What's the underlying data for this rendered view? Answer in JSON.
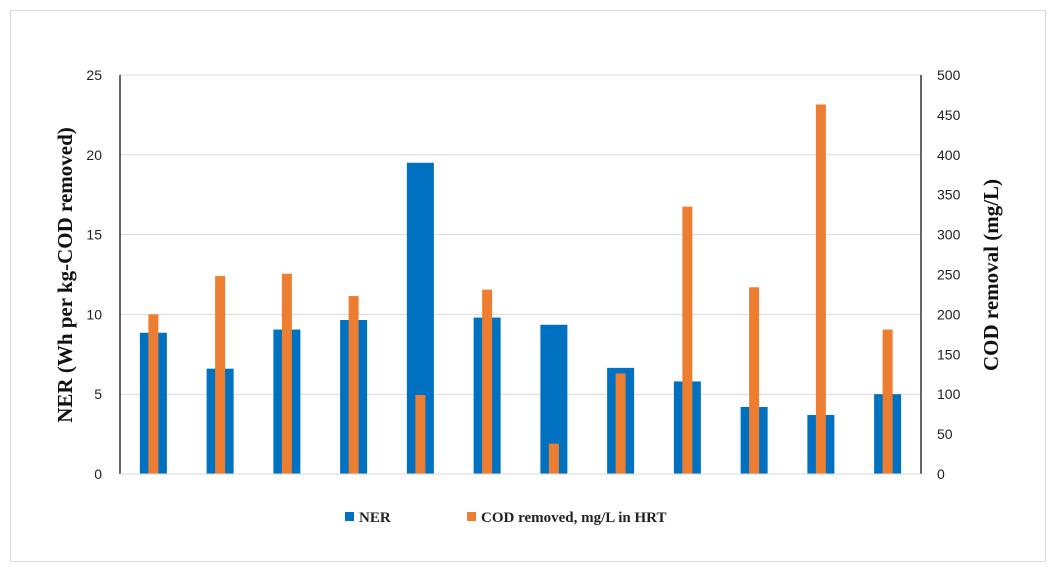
{
  "chart_data": {
    "type": "bar",
    "title": "",
    "categories": [
      "",
      "",
      "",
      "",
      "",
      "",
      "",
      "",
      "",
      "",
      "",
      ""
    ],
    "series": [
      {
        "name": "NER",
        "axis": "left",
        "color": "#0070C0",
        "values": [
          8.85,
          6.6,
          9.05,
          9.65,
          19.5,
          9.8,
          9.35,
          6.65,
          5.8,
          4.2,
          3.7,
          5.0
        ]
      },
      {
        "name": "COD removed, mg/L in HRT",
        "axis": "right",
        "color": "#ED7D31",
        "values": [
          200,
          248,
          251,
          223,
          99,
          231,
          38,
          126,
          335,
          234,
          463,
          181
        ]
      }
    ],
    "ylabel": "NER (Wh per kg-COD removed)",
    "y2label": "COD removal (mg/L)",
    "ylim": [
      0,
      25
    ],
    "y2lim": [
      0,
      500
    ],
    "yticks": [
      "0",
      "5",
      "10",
      "15",
      "20",
      "25"
    ],
    "y2ticks": [
      "0",
      "50",
      "100",
      "150",
      "200",
      "250",
      "300",
      "350",
      "400",
      "450",
      "500"
    ],
    "grid": true,
    "legend_position": "bottom"
  }
}
